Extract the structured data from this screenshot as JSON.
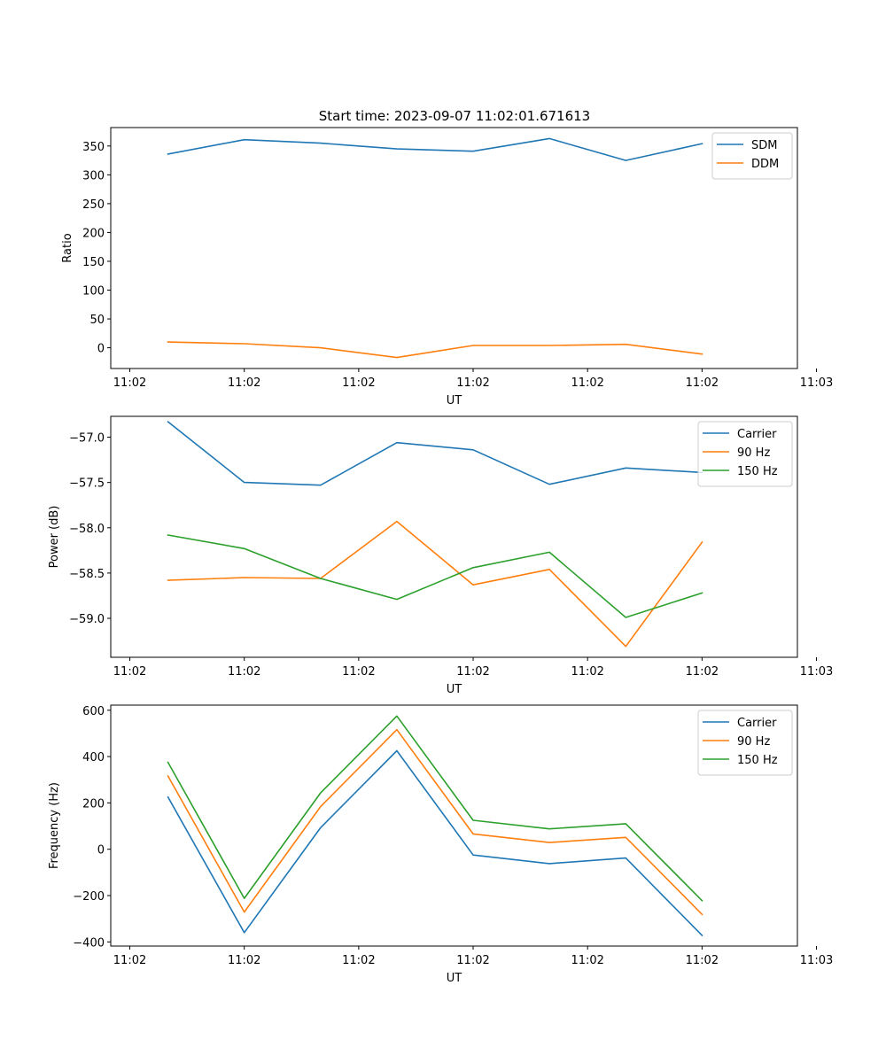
{
  "figure": {
    "title": "Start time: 2023-09-07 11:02:01.671613"
  },
  "chart_data": [
    {
      "type": "line",
      "title": "Start time: 2023-09-07 11:02:01.671613",
      "xlabel": "UT",
      "ylabel": "Ratio",
      "xlim": [
        -0.25,
        8.75
      ],
      "x_ticks": [
        0,
        1.5,
        3,
        4.5,
        6,
        7.5,
        9
      ],
      "x_tick_labels": [
        "11:02",
        "11:02",
        "11:02",
        "11:02",
        "11:02",
        "11:02",
        "11:03"
      ],
      "ylim": [
        -36,
        382
      ],
      "y_ticks": [
        0,
        50,
        100,
        150,
        200,
        250,
        300,
        350
      ],
      "y_tick_labels": [
        "0",
        "50",
        "100",
        "150",
        "200",
        "250",
        "300",
        "350"
      ],
      "x": [
        0.5,
        1.5,
        2.5,
        3.5,
        4.5,
        5.5,
        6.5,
        7.5
      ],
      "legend_position": "top-right",
      "series": [
        {
          "name": "SDM",
          "color": "#1f77b4",
          "values": [
            336,
            361,
            355,
            345,
            341,
            363,
            325,
            354
          ]
        },
        {
          "name": "DDM",
          "color": "#ff7f0e",
          "values": [
            10,
            7,
            0,
            -17,
            4,
            4,
            6,
            -11
          ]
        }
      ]
    },
    {
      "type": "line",
      "title": "",
      "xlabel": "UT",
      "ylabel": "Power (dB)",
      "xlim": [
        -0.25,
        8.75
      ],
      "x_ticks": [
        0,
        1.5,
        3,
        4.5,
        6,
        7.5,
        9
      ],
      "x_tick_labels": [
        "11:02",
        "11:02",
        "11:02",
        "11:02",
        "11:02",
        "11:02",
        "11:03"
      ],
      "ylim": [
        -59.43,
        -56.77
      ],
      "y_ticks": [
        -59.0,
        -58.5,
        -58.0,
        -57.5,
        -57.0
      ],
      "y_tick_labels": [
        "−59.0",
        "−58.5",
        "−58.0",
        "−57.5",
        "−57.0"
      ],
      "x": [
        0.5,
        1.5,
        2.5,
        3.5,
        4.5,
        5.5,
        6.5,
        7.5
      ],
      "legend_position": "top-right",
      "series": [
        {
          "name": "Carrier",
          "color": "#1f77b4",
          "values": [
            -56.83,
            -57.5,
            -57.53,
            -57.06,
            -57.14,
            -57.52,
            -57.34,
            -57.39
          ]
        },
        {
          "name": "90 Hz",
          "color": "#ff7f0e",
          "values": [
            -58.58,
            -58.55,
            -58.56,
            -57.93,
            -58.63,
            -58.46,
            -59.31,
            -58.16
          ]
        },
        {
          "name": "150 Hz",
          "color": "#2ca02c",
          "values": [
            -58.08,
            -58.23,
            -58.56,
            -58.79,
            -58.44,
            -58.27,
            -58.99,
            -58.72
          ]
        }
      ]
    },
    {
      "type": "line",
      "title": "",
      "xlabel": "UT",
      "ylabel": "Frequency (Hz)",
      "xlim": [
        -0.25,
        8.75
      ],
      "x_ticks": [
        0,
        1.5,
        3,
        4.5,
        6,
        7.5,
        9
      ],
      "x_tick_labels": [
        "11:02",
        "11:02",
        "11:02",
        "11:02",
        "11:02",
        "11:02",
        "11:03"
      ],
      "ylim": [
        -418,
        622
      ],
      "y_ticks": [
        -400,
        -200,
        0,
        200,
        400,
        600
      ],
      "y_tick_labels": [
        "−400",
        "−200",
        "0",
        "200",
        "400",
        "600"
      ],
      "x": [
        0.5,
        1.5,
        2.5,
        3.5,
        4.5,
        5.5,
        6.5,
        7.5
      ],
      "legend_position": "top-right",
      "series": [
        {
          "name": "Carrier",
          "color": "#1f77b4",
          "values": [
            225,
            -360,
            93,
            425,
            -25,
            -62,
            -38,
            -372
          ]
        },
        {
          "name": "90 Hz",
          "color": "#ff7f0e",
          "values": [
            316,
            -271,
            184,
            516,
            66,
            29,
            51,
            -281
          ]
        },
        {
          "name": "150 Hz",
          "color": "#2ca02c",
          "values": [
            375,
            -212,
            243,
            575,
            125,
            88,
            110,
            -222
          ]
        }
      ]
    }
  ]
}
